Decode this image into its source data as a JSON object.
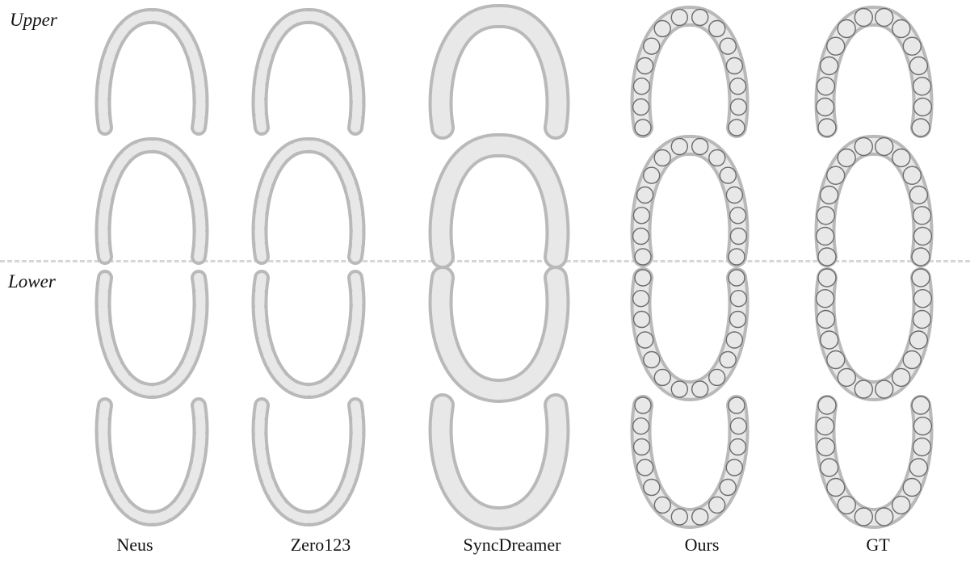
{
  "row_labels": {
    "upper": "Upper",
    "lower": "Lower"
  },
  "columns": [
    "Neus",
    "Zero123",
    "SyncDreamer",
    "Ours",
    "GT"
  ],
  "colors": {
    "mesh_light": "#e8e8e8",
    "mesh_mid": "#b9b9b9",
    "mesh_dark": "#6b6b6b",
    "divider": "#d6d6d6"
  }
}
